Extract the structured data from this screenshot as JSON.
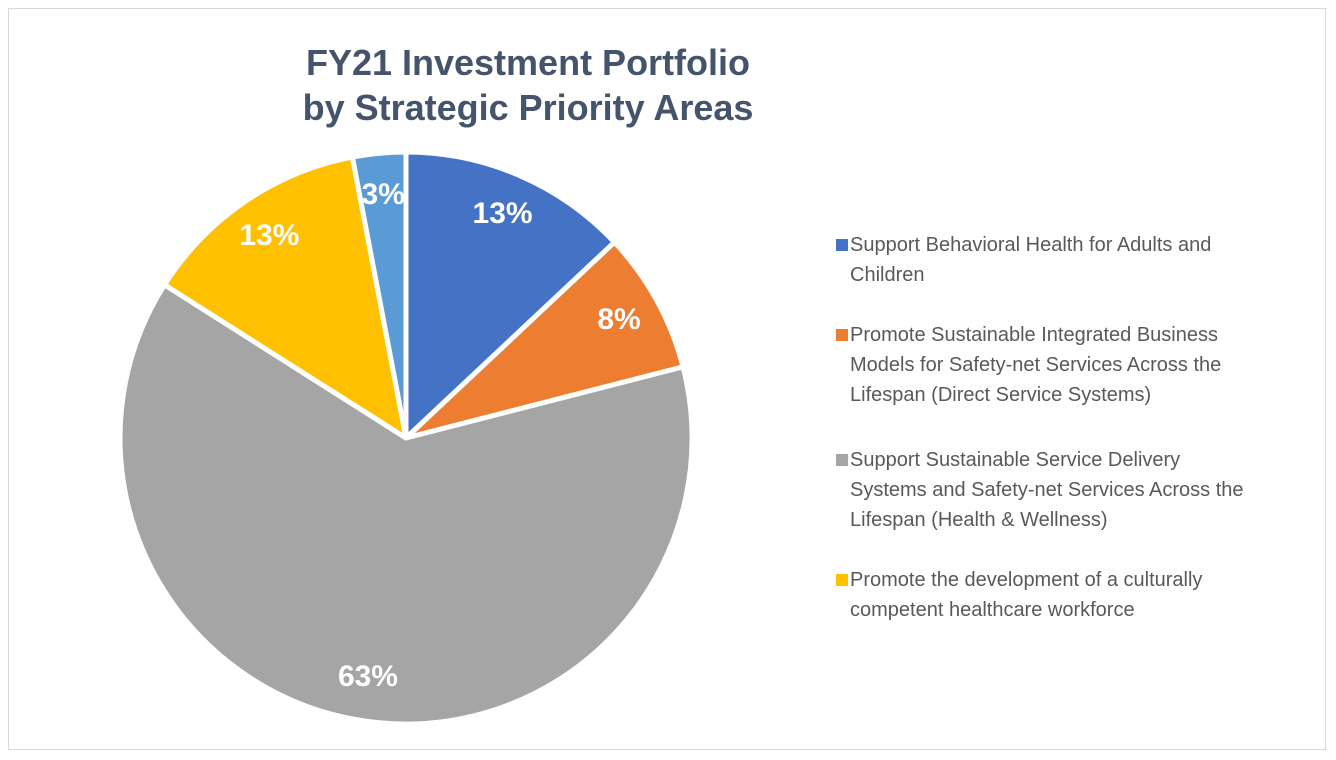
{
  "chart_data": {
    "type": "pie",
    "title": [
      "FY21 Investment Portfolio",
      "by Strategic Priority Areas"
    ],
    "categories": [
      "Support Behavioral Health for Adults and Children",
      "Promote Sustainable Integrated Business Models for Safety-net Services Across the Lifespan (Direct Service Systems)",
      "Support Sustainable Service Delivery Systems and Safety-net Services Across the Lifespan (Health & Wellness)",
      "Promote the development of a culturally competent healthcare workforce",
      null
    ],
    "values": [
      13,
      8,
      63,
      13,
      3
    ],
    "value_labels": [
      "13%",
      "8%",
      "63%",
      "13%",
      "3%"
    ],
    "colors": [
      "#4472c4",
      "#ed7d31",
      "#a5a5a5",
      "#ffc000",
      "#5b9bd5"
    ],
    "legend": "right"
  }
}
